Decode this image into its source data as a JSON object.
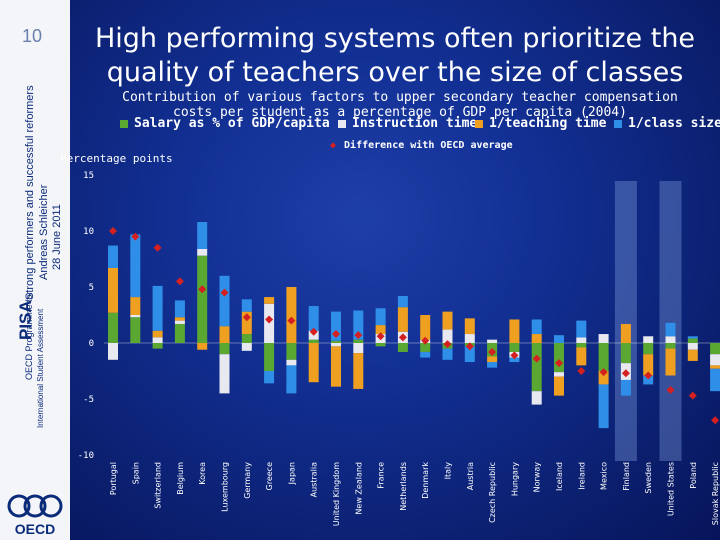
{
  "slide": {
    "number": "10",
    "title": "High performing systems often prioritize the quality of teachers over the size of classes",
    "sidebar": {
      "main": "Strong performers and successful reformers",
      "author": "Andreas Schleicher",
      "date": "28 June 2011",
      "pisa": "PISA",
      "programme_line1": "OECD Programme for",
      "programme_line2": "International Student Assessment",
      "logo_text": "OECD"
    }
  },
  "chart_data": {
    "type": "bar",
    "title": "Contribution of various factors to upper secondary teacher compensation costs per student as a percentage of GDP per capita (2004)",
    "ylabel": "Percentage points",
    "ylim": [
      -10,
      15
    ],
    "yticks": [
      15,
      10,
      5,
      0,
      -5,
      -10
    ],
    "legend_items": [
      {
        "label": "Salary as % of GDP/capita",
        "color": "#5aa832"
      },
      {
        "label": "Instruction time",
        "color": "#e8e8f0"
      },
      {
        "label": "1/teaching time",
        "color": "#f0a020"
      },
      {
        "label": "1/class size",
        "color": "#2f8fe8"
      },
      {
        "label": "Difference with OECD average",
        "color": "#d42020"
      }
    ],
    "categories": [
      "Portugal",
      "Spain",
      "Switzerland",
      "Belgium",
      "Korea",
      "Luxembourg",
      "Germany",
      "Greece",
      "Japan",
      "Australia",
      "United Kingdom",
      "New Zealand",
      "France",
      "Netherlands",
      "Denmark",
      "Italy",
      "Austria",
      "Czech Republic",
      "Hungary",
      "Norway",
      "Iceland",
      "Ireland",
      "Mexico",
      "Finland",
      "Sweden",
      "United States",
      "Poland",
      "Slovak Republic"
    ],
    "highlighted": [
      "Finland",
      "United States"
    ],
    "series": [
      {
        "name": "Salary as % of GDP/capita",
        "values": [
          2.7,
          2.3,
          -0.5,
          1.7,
          7.8,
          -1.0,
          0.8,
          -2.5,
          -1.5,
          0.3,
          0.2,
          0.3,
          -0.3,
          -0.8,
          -0.8,
          -0.5,
          -0.3,
          -1.2,
          -0.8,
          -4.3,
          -2.6,
          -0.4,
          -2.5,
          -1.8,
          -1.0,
          -0.5,
          0.4,
          -1.0
        ]
      },
      {
        "name": "Instruction time",
        "values": [
          -1.5,
          0.2,
          0.5,
          0.3,
          0.6,
          -3.5,
          -0.7,
          3.5,
          -0.5,
          0.8,
          -0.3,
          -0.9,
          0.8,
          1.0,
          0.3,
          1.2,
          0.8,
          0.3,
          -0.5,
          -1.2,
          -0.4,
          0.5,
          0.8,
          -1.5,
          0.6,
          0.6,
          -0.6,
          -1.0
        ]
      },
      {
        "name": "1/teaching time",
        "values": [
          4.0,
          1.6,
          0.6,
          0.3,
          -0.6,
          1.5,
          2.0,
          0.6,
          5.0,
          -3.5,
          -3.6,
          -3.2,
          0.8,
          2.2,
          2.2,
          1.6,
          1.4,
          -0.5,
          2.1,
          0.8,
          -1.7,
          -1.6,
          -1.2,
          1.7,
          -1.9,
          -2.4,
          -1.0,
          -0.3
        ]
      },
      {
        "name": "1/class size",
        "values": [
          2.0,
          5.6,
          4.0,
          1.5,
          2.4,
          4.5,
          1.1,
          -1.1,
          -2.5,
          2.2,
          2.6,
          2.6,
          1.5,
          1.0,
          -0.5,
          -1.0,
          -1.4,
          -0.5,
          -0.4,
          1.3,
          0.7,
          1.5,
          -3.9,
          -1.4,
          -0.8,
          1.2,
          0.2,
          -2.0
        ]
      }
    ],
    "difference": [
      10.0,
      9.5,
      8.5,
      5.5,
      4.8,
      4.5,
      2.3,
      2.1,
      2.0,
      1.0,
      0.8,
      0.7,
      0.6,
      0.5,
      0.2,
      -0.1,
      -0.3,
      -0.8,
      -1.1,
      -1.4,
      -1.8,
      -2.5,
      -2.6,
      -2.7,
      -2.9,
      -4.2,
      -4.7,
      -6.9
    ]
  }
}
